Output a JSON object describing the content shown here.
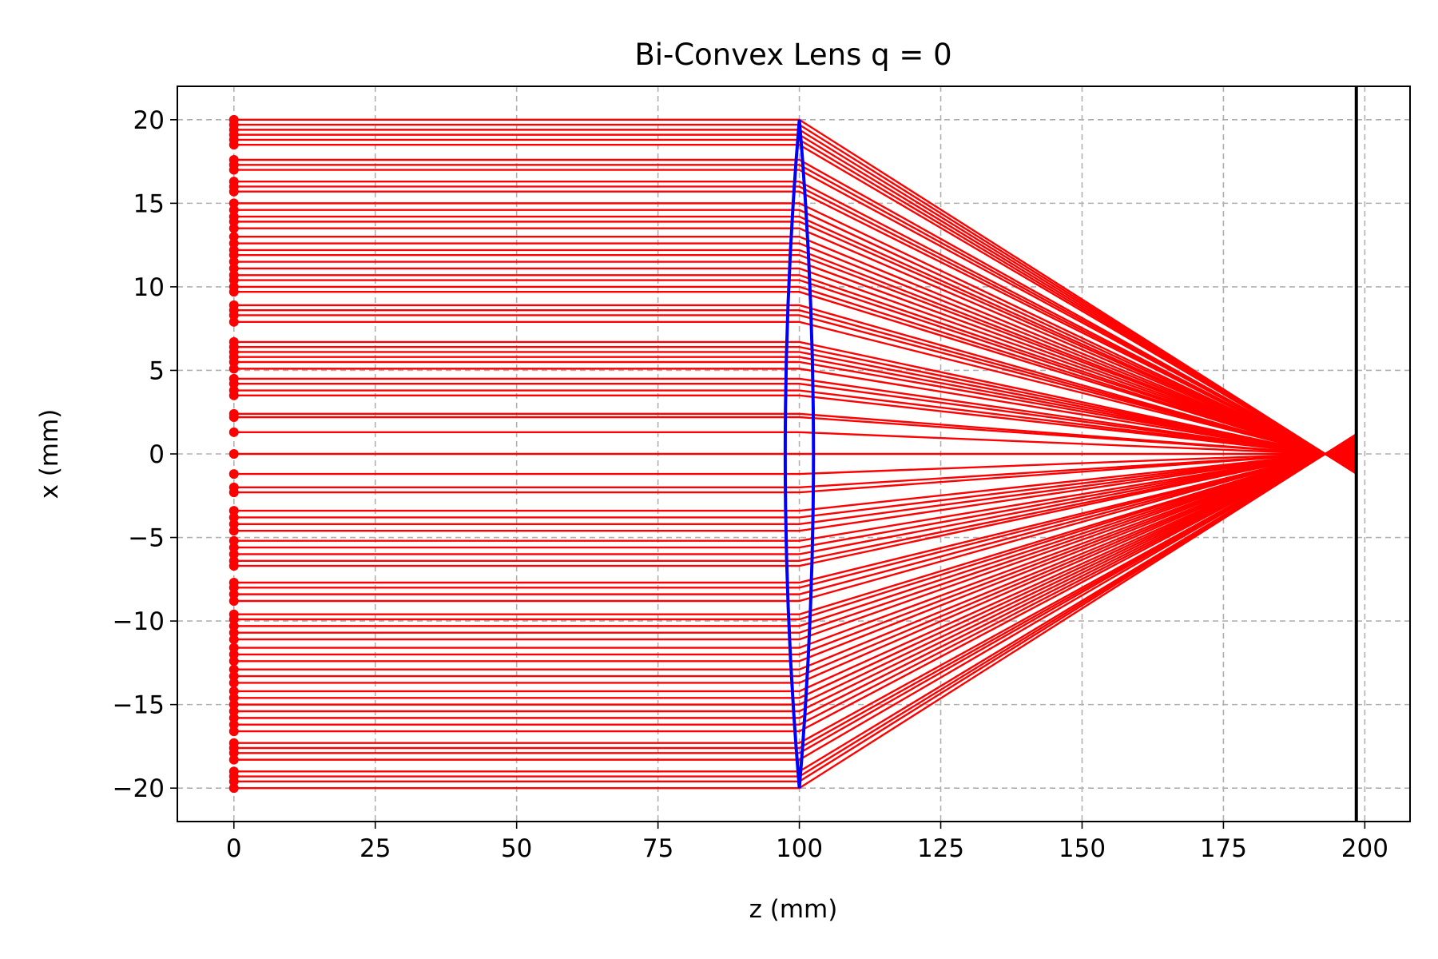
{
  "chart_data": {
    "type": "line",
    "title": "Bi-Convex Lens q = 0",
    "xlabel": "z (mm)",
    "ylabel": "x (mm)",
    "xlim": [
      -10,
      208
    ],
    "ylim": [
      -22,
      22
    ],
    "xticks": [
      0,
      25,
      50,
      75,
      100,
      125,
      150,
      175,
      200
    ],
    "yticks": [
      20,
      15,
      10,
      5,
      0,
      -5,
      -10,
      -15,
      -20
    ],
    "xtick_labels": [
      "0",
      "25",
      "50",
      "75",
      "100",
      "125",
      "150",
      "175",
      "200"
    ],
    "ytick_labels": [
      "20",
      "15",
      "10",
      "5",
      "0",
      "−5",
      "−10",
      "−15",
      "−20"
    ],
    "grid": true,
    "ray_color": "#ff0000",
    "lens_color": "#0000ff",
    "screen_color": "#000000",
    "rays": {
      "source_z": 0,
      "lens_z": 100,
      "focus_z": 193,
      "screen_z": 198.5,
      "heights": [
        20,
        19.7,
        19.4,
        19.1,
        18.8,
        18.5,
        17.6,
        17.3,
        17.0,
        16.3,
        16.0,
        15.7,
        15.0,
        14.6,
        14.2,
        13.9,
        13.5,
        13.0,
        12.6,
        12.2,
        11.9,
        11.5,
        11.1,
        10.7,
        10.4,
        10.0,
        9.7,
        8.9,
        8.6,
        8.3,
        7.9,
        6.7,
        6.4,
        6.1,
        5.8,
        5.5,
        5.1,
        4.5,
        4.2,
        3.8,
        3.5,
        2.4,
        2.2,
        1.3,
        0,
        -1.2,
        -2.0,
        -2.3,
        -3.4,
        -3.8,
        -4.2,
        -4.6,
        -5.2,
        -5.6,
        -6.0,
        -6.4,
        -6.7,
        -7.7,
        -8.0,
        -8.4,
        -8.8,
        -9.6,
        -9.9,
        -10.3,
        -10.7,
        -11.1,
        -11.6,
        -12.0,
        -12.4,
        -12.9,
        -13.3,
        -13.7,
        -14.2,
        -14.6,
        -15.0,
        -15.4,
        -15.8,
        -16.2,
        -16.6,
        -17.3,
        -17.6,
        -17.9,
        -18.3,
        -19.0,
        -19.3,
        -19.6,
        -20.0
      ]
    },
    "lens": {
      "z": 100,
      "half_height": 20,
      "half_thickness": 2.5
    },
    "screen": {
      "z": 198.5
    }
  }
}
